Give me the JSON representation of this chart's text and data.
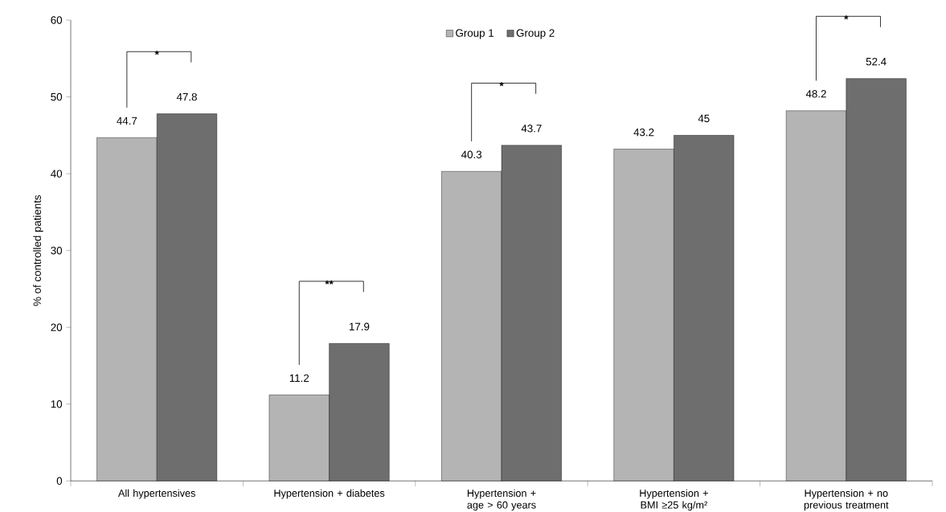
{
  "chart_data": {
    "type": "bar",
    "ylabel": "% of controlled patients",
    "categories": [
      "All hypertensives",
      "Hypertension + diabetes",
      "Hypertension + age > 60 years",
      "Hypertension + BMI ≥25 kg/m²",
      "Hypertension + no previous treatment"
    ],
    "series": [
      {
        "name": "Group 1",
        "color": "#b4b4b4",
        "values": [
          44.7,
          11.2,
          40.3,
          43.2,
          48.2
        ]
      },
      {
        "name": "Group 2",
        "color": "#6e6e6e",
        "values": [
          47.8,
          17.9,
          43.7,
          45,
          52.4
        ]
      }
    ],
    "ylim": [
      0,
      60
    ],
    "yticks": [
      0,
      10,
      20,
      30,
      40,
      50,
      60
    ],
    "data_labels": true,
    "legend": "top",
    "grid": false,
    "annotations": [
      "*",
      "**",
      "*",
      "*"
    ]
  }
}
